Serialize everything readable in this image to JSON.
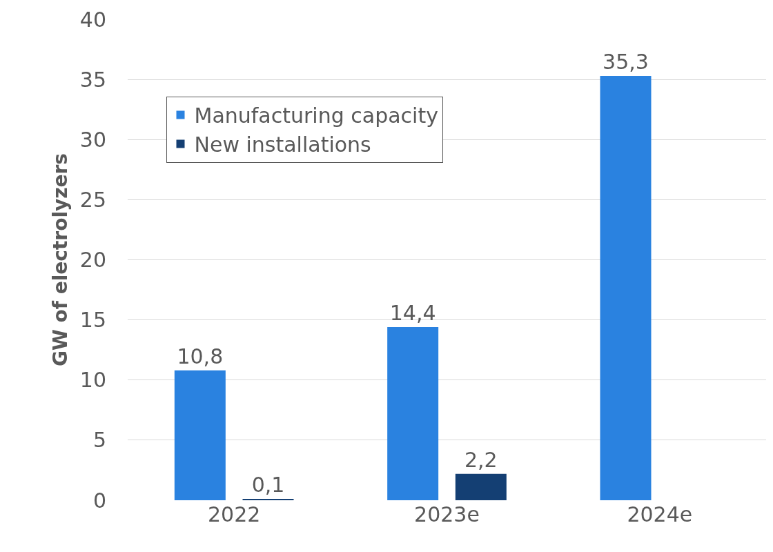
{
  "chart_data": {
    "type": "bar",
    "ylabel": "GW of electrolyzers",
    "categories": [
      "2022",
      "2023e",
      "2024e"
    ],
    "series": [
      {
        "name": "Manufacturing capacity",
        "color": "#2a82e0",
        "values": [
          10.8,
          14.4,
          35.3
        ],
        "value_labels": [
          "10,8",
          "14,4",
          "35,3"
        ]
      },
      {
        "name": "New installations",
        "color": "#143f73",
        "values": [
          0.1,
          2.2,
          null
        ],
        "value_labels": [
          "0,1",
          "2,2",
          null
        ]
      }
    ],
    "ylim": [
      0,
      40
    ],
    "yticks": [
      0,
      5,
      10,
      15,
      20,
      25,
      30,
      35,
      40
    ],
    "grid": "y",
    "legend": "top left"
  }
}
